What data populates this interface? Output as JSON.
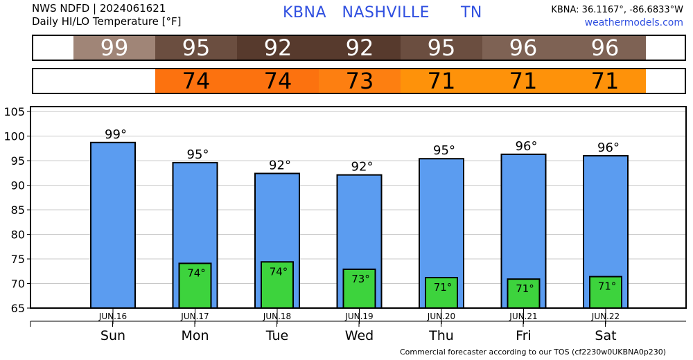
{
  "header": {
    "source_line": "NWS NDFD | 2024061621",
    "product_line": "Daily HI/LO Temperature [°F]",
    "station_code": "KBNA",
    "station_name": "NASHVILLE",
    "state": "TN",
    "coords": "KBNA: 36.1167°, -86.6833°W",
    "website": "weathermodels.com"
  },
  "hi_strip": [
    {
      "value": "99",
      "color": "#a08577"
    },
    {
      "value": "95",
      "color": "#6b4e40"
    },
    {
      "value": "92",
      "color": "#573a2d"
    },
    {
      "value": "92",
      "color": "#573a2d"
    },
    {
      "value": "95",
      "color": "#6b4e40"
    },
    {
      "value": "96",
      "color": "#7e6254"
    },
    {
      "value": "96",
      "color": "#7e6254"
    }
  ],
  "lo_strip": [
    {
      "value": "",
      "color": "#ffffff"
    },
    {
      "value": "74",
      "color": "#fc720f"
    },
    {
      "value": "74",
      "color": "#fc720f"
    },
    {
      "value": "73",
      "color": "#fd7f11"
    },
    {
      "value": "71",
      "color": "#fe920a"
    },
    {
      "value": "71",
      "color": "#fe920a"
    },
    {
      "value": "71",
      "color": "#fe920a"
    }
  ],
  "chart_data": {
    "type": "bar",
    "categories": [
      "JUN.16",
      "JUN.17",
      "JUN.18",
      "JUN.19",
      "JUN.20",
      "JUN.21",
      "JUN.22"
    ],
    "day_labels": [
      "Sun",
      "Mon",
      "Tue",
      "Wed",
      "Thu",
      "Fri",
      "Sat"
    ],
    "series": [
      {
        "values": [
          98.7,
          94.6,
          92.4,
          92.1,
          95.4,
          96.3,
          96.0
        ],
        "labels": [
          "99°",
          "95°",
          "92°",
          "92°",
          "95°",
          "96°",
          "96°"
        ],
        "color": "#5b9cf0"
      },
      {
        "values": [
          null,
          74.1,
          74.4,
          72.9,
          71.2,
          70.9,
          71.4
        ],
        "labels": [
          "",
          "74°",
          "74°",
          "73°",
          "71°",
          "71°",
          "71°"
        ],
        "color": "#3dd33d"
      }
    ],
    "ylim": [
      65,
      106
    ],
    "yticks": [
      65,
      70,
      75,
      80,
      85,
      90,
      95,
      100,
      105
    ],
    "grid": true,
    "legend": "none"
  },
  "footer": "Commercial forecaster according to our TOS (cf2230w0UKBNA0p230)"
}
